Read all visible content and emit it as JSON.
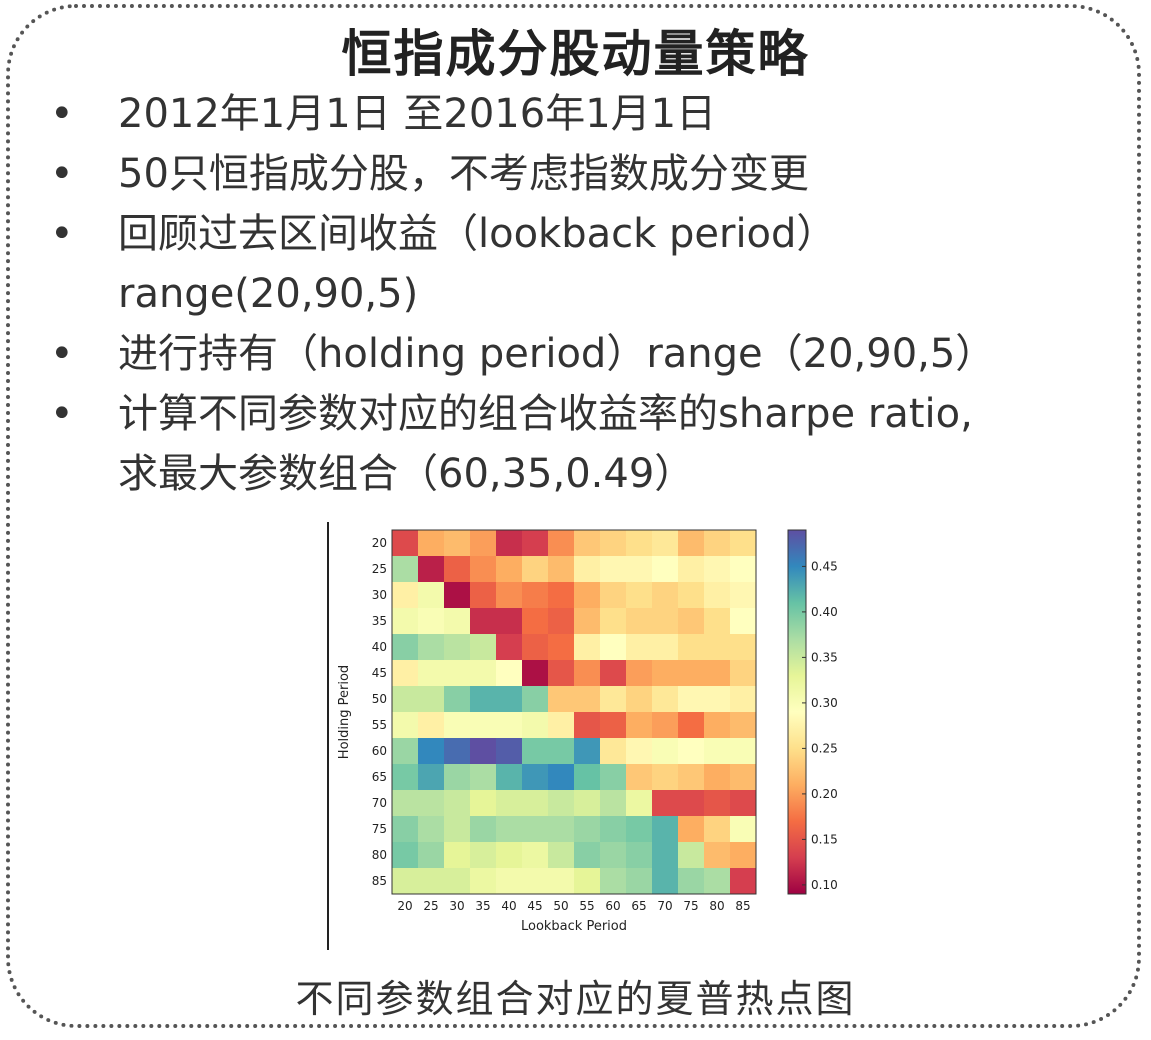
{
  "slide": {
    "title": "恒指成分股动量策略",
    "bullets": [
      {
        "line1": "2012年1月1日 至2016年1月1日",
        "line2": ""
      },
      {
        "line1": "50只恒指成分股，不考虑指数成分变更",
        "line2": ""
      },
      {
        "line1": "回顾过去区间收益（lookback period）",
        "line2": "range(20,90,5)"
      },
      {
        "line1": "进行持有（holding period）range（20,90,5）",
        "line2": ""
      },
      {
        "line1": "计算不同参数对应的组合收益率的sharpe ratio,",
        "line2": "求最大参数组合（60,35,0.49）"
      }
    ],
    "caption": "不同参数组合对应的夏普热点图"
  },
  "chart_data": {
    "type": "heatmap",
    "xlabel": "Lookback Period",
    "ylabel": "Holding Period",
    "x": [
      20,
      25,
      30,
      35,
      40,
      45,
      50,
      55,
      60,
      65,
      70,
      75,
      80,
      85
    ],
    "y": [
      20,
      25,
      30,
      35,
      40,
      45,
      50,
      55,
      60,
      65,
      70,
      75,
      80,
      85
    ],
    "colorbar": {
      "min": 0.09,
      "max": 0.49,
      "ticks": [
        0.1,
        0.15,
        0.2,
        0.25,
        0.3,
        0.35,
        0.4,
        0.45
      ]
    },
    "colormap": "Spectral",
    "values": [
      [
        0.14,
        0.21,
        0.22,
        0.2,
        0.12,
        0.13,
        0.19,
        0.23,
        0.24,
        0.25,
        0.26,
        0.22,
        0.24,
        0.25
      ],
      [
        0.37,
        0.11,
        0.16,
        0.19,
        0.21,
        0.24,
        0.22,
        0.27,
        0.28,
        0.28,
        0.29,
        0.27,
        0.28,
        0.29
      ],
      [
        0.27,
        0.31,
        0.1,
        0.16,
        0.19,
        0.18,
        0.17,
        0.21,
        0.24,
        0.25,
        0.24,
        0.25,
        0.27,
        0.28
      ],
      [
        0.31,
        0.3,
        0.31,
        0.12,
        0.12,
        0.17,
        0.16,
        0.22,
        0.25,
        0.24,
        0.24,
        0.23,
        0.25,
        0.29
      ],
      [
        0.39,
        0.37,
        0.36,
        0.35,
        0.13,
        0.16,
        0.17,
        0.27,
        0.29,
        0.27,
        0.27,
        0.25,
        0.25,
        0.25
      ],
      [
        0.27,
        0.31,
        0.31,
        0.31,
        0.29,
        0.1,
        0.15,
        0.19,
        0.14,
        0.2,
        0.21,
        0.21,
        0.21,
        0.24
      ],
      [
        0.35,
        0.35,
        0.39,
        0.42,
        0.42,
        0.39,
        0.23,
        0.23,
        0.26,
        0.24,
        0.26,
        0.28,
        0.28,
        0.27
      ],
      [
        0.31,
        0.27,
        0.3,
        0.3,
        0.3,
        0.31,
        0.27,
        0.15,
        0.16,
        0.21,
        0.2,
        0.17,
        0.21,
        0.22
      ],
      [
        0.38,
        0.45,
        0.47,
        0.49,
        0.48,
        0.4,
        0.4,
        0.44,
        0.26,
        0.28,
        0.3,
        0.29,
        0.3,
        0.3
      ],
      [
        0.4,
        0.43,
        0.38,
        0.37,
        0.42,
        0.44,
        0.45,
        0.41,
        0.39,
        0.23,
        0.24,
        0.23,
        0.21,
        0.22
      ],
      [
        0.36,
        0.36,
        0.35,
        0.33,
        0.34,
        0.34,
        0.35,
        0.34,
        0.36,
        0.32,
        0.14,
        0.14,
        0.15,
        0.14
      ],
      [
        0.39,
        0.37,
        0.35,
        0.38,
        0.37,
        0.37,
        0.37,
        0.38,
        0.39,
        0.4,
        0.42,
        0.21,
        0.24,
        0.3
      ],
      [
        0.4,
        0.38,
        0.33,
        0.34,
        0.33,
        0.32,
        0.35,
        0.39,
        0.38,
        0.39,
        0.42,
        0.35,
        0.22,
        0.21
      ],
      [
        0.34,
        0.34,
        0.34,
        0.32,
        0.31,
        0.31,
        0.31,
        0.33,
        0.37,
        0.38,
        0.42,
        0.38,
        0.37,
        0.13
      ]
    ]
  }
}
